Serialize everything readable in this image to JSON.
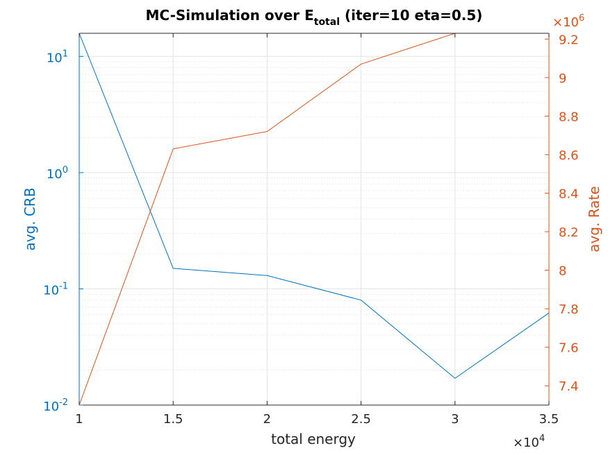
{
  "colors": {
    "left_axis": "#0072BD",
    "right_axis": "#D95319",
    "x_axis": "#262626",
    "grid": "#dfe3e8"
  },
  "chart_data": {
    "type": "line",
    "title": {
      "main": "MC-Simulation over E",
      "subscript": "total",
      "suffix": " (iter=10 eta=0.5)"
    },
    "xlabel": "total energy",
    "x_exponent": {
      "base": "×10",
      "power": "4"
    },
    "x": [
      1,
      1.5,
      2,
      2.5,
      3,
      3.5
    ],
    "xlim": [
      1,
      3.5
    ],
    "x_ticks": [
      "1",
      "1.5",
      "2",
      "2.5",
      "3",
      "3.5"
    ],
    "grid": true,
    "left_axis": {
      "label": "avg. CRB",
      "scale": "log",
      "ylim": [
        0.01,
        15.8
      ],
      "ticks": [
        {
          "base": "10",
          "power": "-2",
          "value": 0.01
        },
        {
          "base": "10",
          "power": "-1",
          "value": 0.1
        },
        {
          "base": "10",
          "power": "0",
          "value": 1
        },
        {
          "base": "10",
          "power": "1",
          "value": 10
        }
      ]
    },
    "right_axis": {
      "label": "avg. Rate",
      "scale": "linear",
      "exponent": {
        "base": "×10",
        "power": "6"
      },
      "ylim": [
        7.3,
        9.23
      ],
      "ticks": [
        "7.4",
        "7.6",
        "7.8",
        "8",
        "8.2",
        "8.4",
        "8.6",
        "8.8",
        "9",
        "9.2"
      ]
    },
    "series": [
      {
        "axis": "left",
        "values": [
          15.8,
          0.15,
          0.13,
          0.08,
          0.017,
          0.062
        ]
      },
      {
        "axis": "right",
        "values": [
          7.3,
          8.63,
          8.72,
          9.07,
          9.23,
          9.23
        ]
      }
    ]
  }
}
